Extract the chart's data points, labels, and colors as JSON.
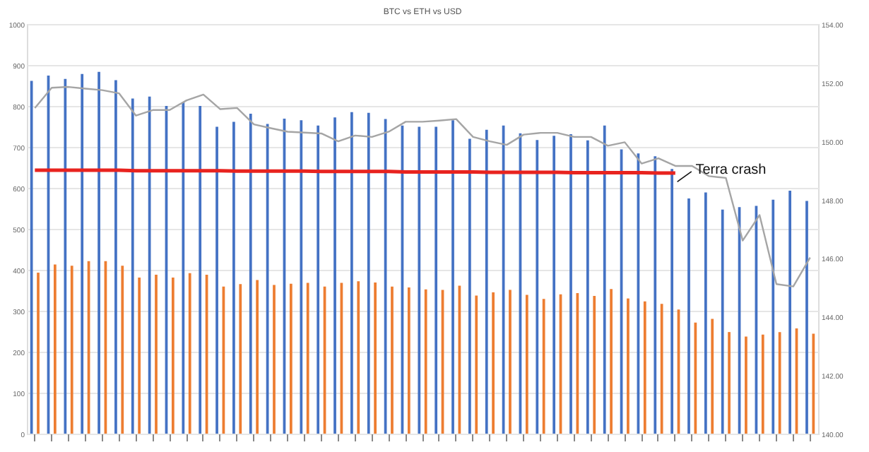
{
  "chart_data": {
    "type": "bar",
    "title": "BTC vs ETH vs USD",
    "categories": [
      null,
      null,
      null,
      null,
      null,
      null,
      null,
      null,
      null,
      null,
      null,
      null,
      null,
      null,
      null,
      null,
      null,
      null,
      null,
      null,
      null,
      null,
      null,
      null,
      null,
      null,
      null,
      null,
      null,
      null,
      null,
      null,
      null,
      null,
      null,
      null,
      null,
      null,
      null,
      null,
      null,
      null,
      null,
      null,
      null,
      null,
      null
    ],
    "series": [
      {
        "color": "#4472c4",
        "values": [
          861,
          874,
          866,
          878,
          883,
          863,
          818,
          823,
          800,
          809,
          800,
          749,
          761,
          781,
          756,
          769,
          765,
          752,
          772,
          785,
          783,
          768,
          752,
          749,
          749,
          765,
          720,
          742,
          752,
          733,
          717,
          727,
          731,
          716,
          752,
          694,
          684,
          677,
          646,
          574,
          589,
          547,
          553,
          556,
          571,
          593,
          568
        ]
      },
      {
        "color": "#ed7d31",
        "values": [
          393,
          413,
          410,
          421,
          421,
          410,
          381,
          388,
          381,
          392,
          388,
          359,
          365,
          375,
          363,
          366,
          368,
          359,
          368,
          372,
          369,
          359,
          357,
          352,
          351,
          361,
          337,
          345,
          351,
          339,
          329,
          340,
          343,
          336,
          353,
          330,
          323,
          317,
          303,
          271,
          280,
          248,
          237,
          242,
          248,
          257,
          244
        ]
      },
      {
        "type": "line",
        "axis": "y2",
        "color": "#a5a5a5",
        "values": [
          151.13,
          151.82,
          151.85,
          151.79,
          151.74,
          151.63,
          150.87,
          151.06,
          151.06,
          151.39,
          151.59,
          151.09,
          151.13,
          150.57,
          150.44,
          150.32,
          150.29,
          150.26,
          149.99,
          150.19,
          150.14,
          150.32,
          150.66,
          150.66,
          150.7,
          150.75,
          150.14,
          149.99,
          149.87,
          150.22,
          150.28,
          150.28,
          150.14,
          150.14,
          149.84,
          149.96,
          149.23,
          149.41,
          149.15,
          149.15,
          148.8,
          148.74,
          146.6,
          147.47,
          145.11,
          145.03,
          146.02
        ]
      },
      {
        "type": "line",
        "color": "#e8231f",
        "values": [
          643,
          643,
          643,
          643,
          643,
          643,
          642,
          642,
          642,
          642,
          642,
          642,
          641,
          641,
          641,
          641,
          641,
          640,
          640,
          640,
          640,
          640,
          639,
          639,
          639,
          639,
          639,
          638,
          638,
          638,
          638,
          638,
          637,
          637,
          637,
          637,
          637,
          636,
          636,
          null,
          null,
          null,
          null,
          null,
          null,
          null,
          null
        ]
      }
    ],
    "ylim": [
      0,
      1000
    ],
    "yticks": [
      0,
      100,
      200,
      300,
      400,
      500,
      600,
      700,
      800,
      900,
      1000
    ],
    "y2lim": [
      140,
      154
    ],
    "y2ticks": [
      {
        "value": 140,
        "label": "140.00"
      },
      {
        "value": 142,
        "label": "142.00"
      },
      {
        "value": 144,
        "label": "144.00"
      },
      {
        "value": 146,
        "label": "146.00"
      },
      {
        "value": 148,
        "label": "148.00"
      },
      {
        "value": 150,
        "label": "150.00"
      },
      {
        "value": 152,
        "label": "152.00"
      },
      {
        "value": 154,
        "label": "154.00"
      }
    ],
    "grid": "y",
    "legend": false,
    "marker": "none",
    "line_style": "solid",
    "annotations": [
      "Terra crash"
    ]
  }
}
